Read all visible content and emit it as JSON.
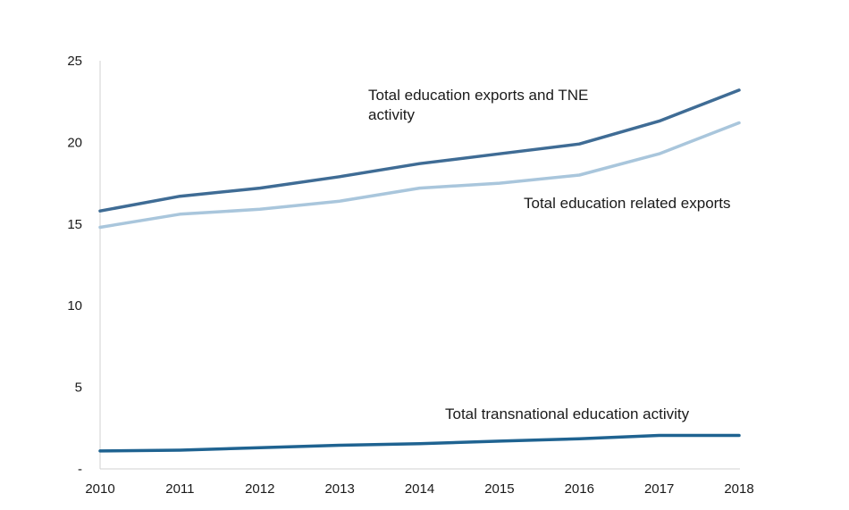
{
  "chart_data": {
    "type": "line",
    "title": "",
    "xlabel": "",
    "ylabel": "",
    "x": [
      "2010",
      "2011",
      "2012",
      "2013",
      "2014",
      "2015",
      "2016",
      "2017",
      "2018"
    ],
    "ylim": [
      0,
      25
    ],
    "yticks": [
      "-",
      "5",
      "10",
      "15",
      "20",
      "25"
    ],
    "grid": false,
    "legend": "none",
    "series": [
      {
        "name": "Total education exports and TNE activity",
        "values": [
          15.8,
          16.7,
          17.2,
          17.9,
          18.7,
          19.3,
          19.9,
          21.3,
          23.2
        ],
        "color": "#3f6c95"
      },
      {
        "name": "Total education related exports",
        "values": [
          14.8,
          15.6,
          15.9,
          16.4,
          17.2,
          17.5,
          18.0,
          19.3,
          21.2
        ],
        "color": "#a9c6dc"
      },
      {
        "name": "Total transnational education activity",
        "values": [
          1.1,
          1.15,
          1.3,
          1.45,
          1.55,
          1.7,
          1.85,
          2.05,
          2.05
        ],
        "color": "#1f6391"
      }
    ],
    "annotations": [
      {
        "lines": [
          "Total education exports and TNE",
          "activity"
        ]
      },
      {
        "lines": [
          "Total education related exports"
        ]
      },
      {
        "lines": [
          "Total transnational education activity"
        ]
      }
    ]
  }
}
